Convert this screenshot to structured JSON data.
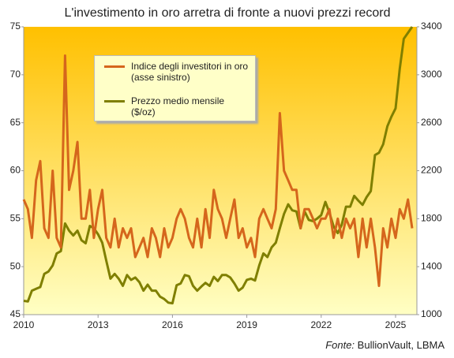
{
  "chart_data": {
    "type": "line",
    "title": "L'investimento in oro arretra di fronte a nuovi prezzi record",
    "source_prefix": "Fonte:",
    "source": "BullionVault, LBMA",
    "x": [
      2010,
      2010.17,
      2010.33,
      2010.5,
      2010.67,
      2010.83,
      2011,
      2011.17,
      2011.33,
      2011.5,
      2011.67,
      2011.83,
      2012,
      2012.17,
      2012.33,
      2012.5,
      2012.67,
      2012.83,
      2013,
      2013.17,
      2013.33,
      2013.5,
      2013.67,
      2013.83,
      2014,
      2014.17,
      2014.33,
      2014.5,
      2014.67,
      2014.83,
      2015,
      2015.17,
      2015.33,
      2015.5,
      2015.67,
      2015.83,
      2016,
      2016.17,
      2016.33,
      2016.5,
      2016.67,
      2016.83,
      2017,
      2017.17,
      2017.33,
      2017.5,
      2017.67,
      2017.83,
      2018,
      2018.17,
      2018.33,
      2018.5,
      2018.67,
      2018.83,
      2019,
      2019.17,
      2019.33,
      2019.5,
      2019.67,
      2019.83,
      2020,
      2020.17,
      2020.33,
      2020.5,
      2020.67,
      2020.83,
      2021,
      2021.17,
      2021.33,
      2021.5,
      2021.67,
      2021.83,
      2022,
      2022.17,
      2022.33,
      2022.5,
      2022.67,
      2022.83,
      2023,
      2023.17,
      2023.33,
      2023.5,
      2023.67,
      2023.83,
      2024,
      2024.17,
      2024.33,
      2024.5,
      2024.67,
      2024.83,
      2025,
      2025.17,
      2025.33,
      2025.5,
      2025.67
    ],
    "series": [
      {
        "name": "Indice degli investitori in oro (asse sinistro)",
        "color": "#d5661c",
        "axis": "y",
        "values": [
          57,
          56,
          53,
          59,
          61,
          54,
          53,
          60,
          53,
          52,
          72,
          58,
          60,
          63,
          55,
          55,
          58,
          53,
          56,
          58,
          53,
          52,
          55,
          52,
          54,
          53,
          54,
          51,
          52,
          53,
          51,
          54,
          53,
          51,
          54,
          52,
          53,
          55,
          56,
          55,
          53,
          52,
          55,
          52,
          56,
          53,
          58,
          56,
          55,
          53,
          55,
          57,
          53,
          54,
          52,
          53,
          51,
          55,
          56,
          55,
          54,
          56,
          66,
          60,
          59,
          58,
          58,
          54,
          56,
          56,
          55,
          54,
          55,
          55,
          56,
          53,
          55,
          53,
          55,
          54,
          55,
          51,
          55,
          52,
          55,
          52,
          48,
          54,
          52,
          55,
          53,
          56,
          55,
          57,
          54
        ]
      },
      {
        "name": "Prezzo medio mensile ($/oz)",
        "color": "#7f7f00",
        "axis": "y2",
        "values": [
          1115,
          1110,
          1200,
          1215,
          1230,
          1340,
          1360,
          1410,
          1510,
          1530,
          1760,
          1700,
          1660,
          1700,
          1620,
          1595,
          1740,
          1720,
          1670,
          1600,
          1450,
          1300,
          1340,
          1300,
          1240,
          1330,
          1290,
          1310,
          1270,
          1200,
          1250,
          1200,
          1200,
          1150,
          1130,
          1100,
          1095,
          1245,
          1260,
          1330,
          1320,
          1240,
          1200,
          1235,
          1265,
          1240,
          1315,
          1280,
          1330,
          1330,
          1310,
          1260,
          1200,
          1225,
          1290,
          1300,
          1285,
          1410,
          1510,
          1480,
          1560,
          1600,
          1720,
          1840,
          1920,
          1870,
          1860,
          1720,
          1860,
          1790,
          1780,
          1800,
          1830,
          1940,
          1850,
          1735,
          1680,
          1750,
          1900,
          1900,
          1990,
          1950,
          1915,
          1980,
          2030,
          2330,
          2350,
          2420,
          2570,
          2650,
          2720,
          3050,
          3300,
          3350,
          3400
        ]
      }
    ],
    "xlim": [
      2010,
      2025.86
    ],
    "xticks": [
      2010,
      2013,
      2016,
      2019,
      2022,
      2025
    ],
    "ylim": [
      45,
      75
    ],
    "yticks": [
      45,
      50,
      55,
      60,
      65,
      70,
      75
    ],
    "y2lim": [
      1000,
      3400
    ],
    "y2ticks": [
      1000,
      1400,
      1800,
      2200,
      2600,
      3000,
      3400
    ]
  }
}
